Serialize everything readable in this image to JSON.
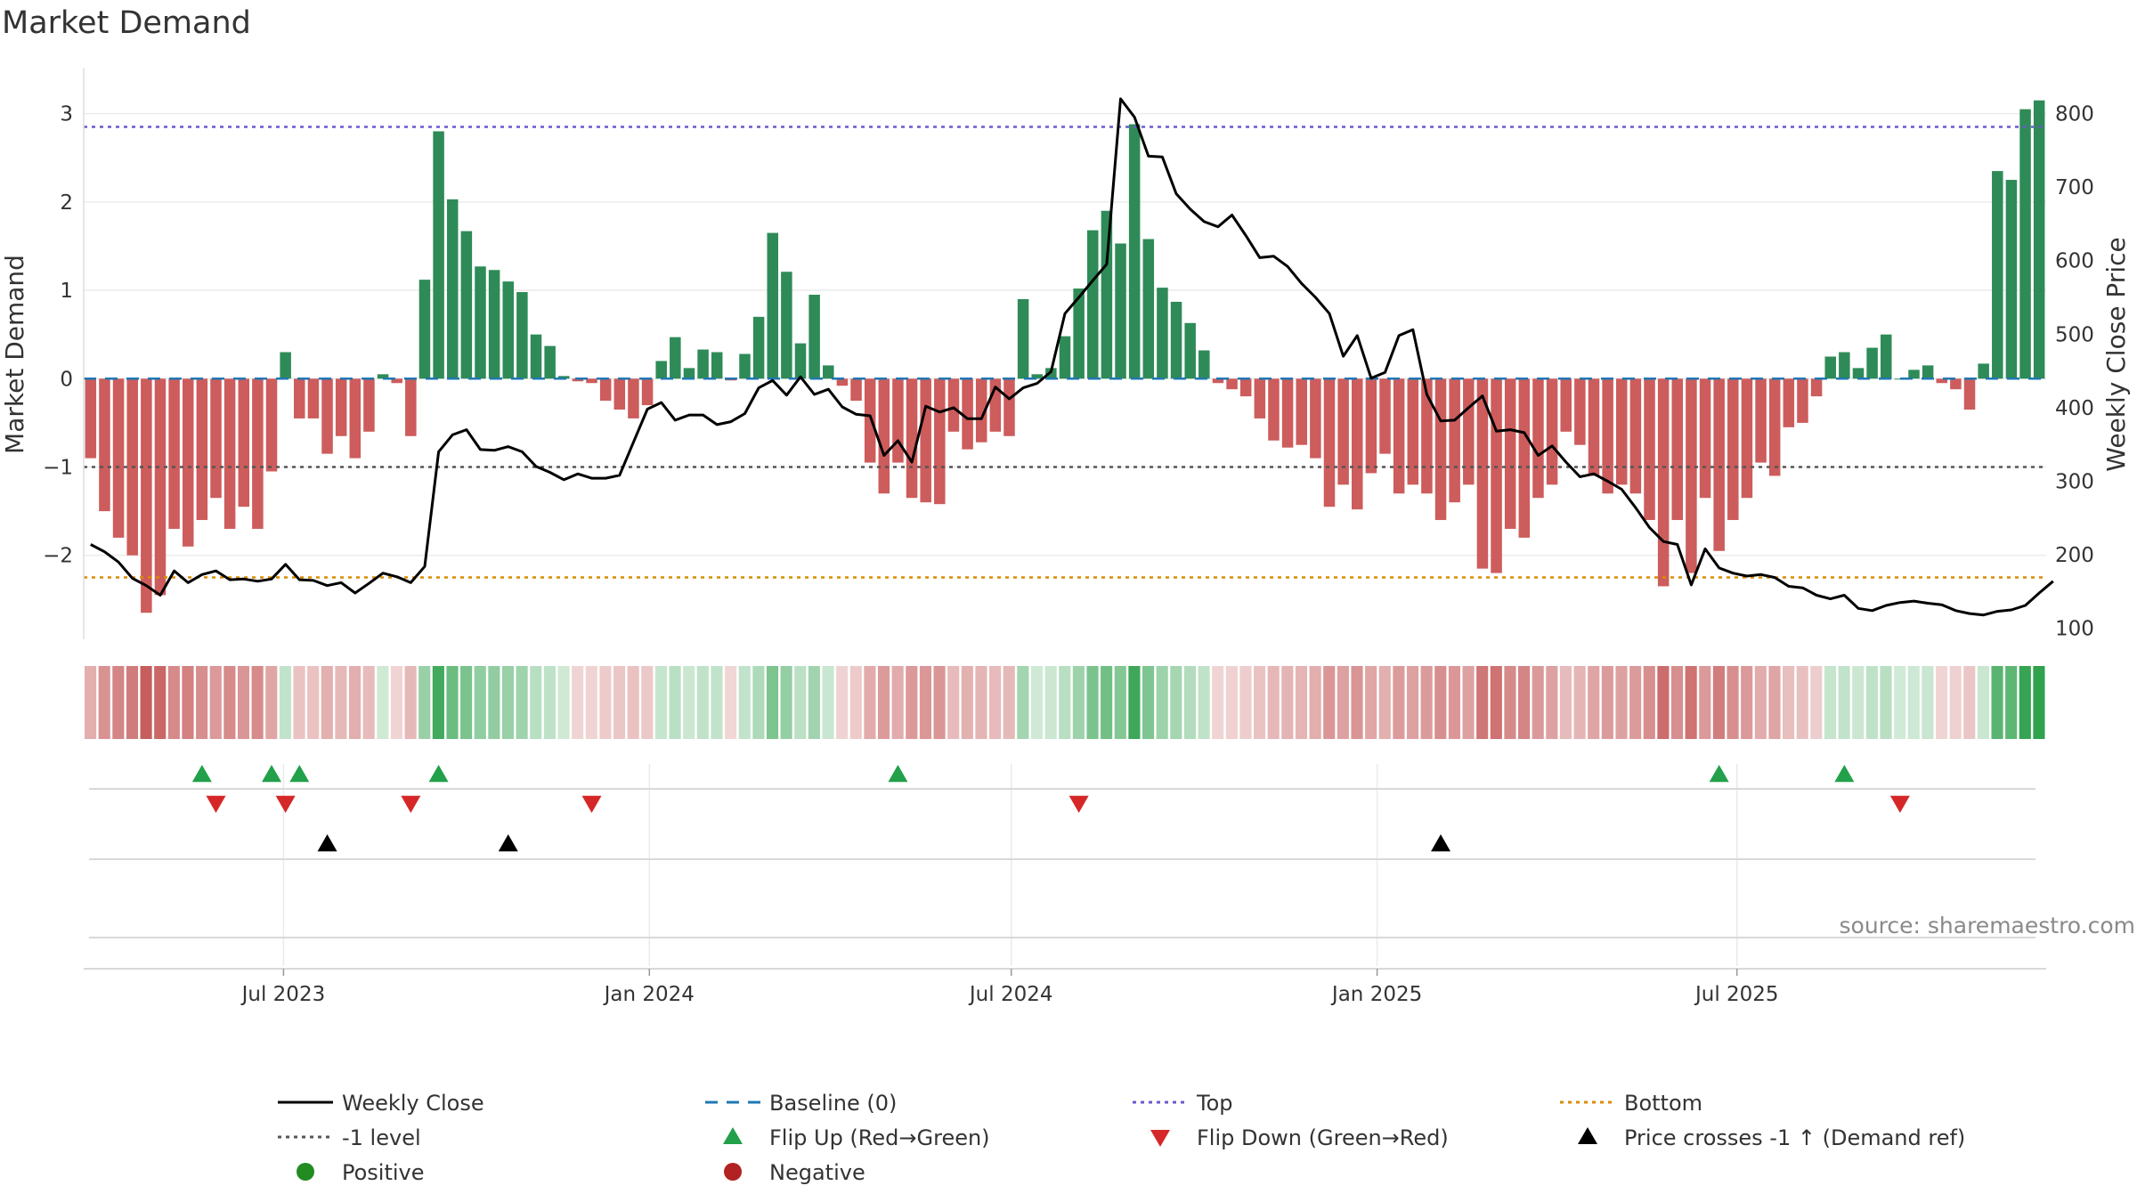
{
  "title": "Market Demand",
  "source_text": "source: sharemaestro.com",
  "chart_data": {
    "type": "bar",
    "title": "Market Demand",
    "ylabel_left": "Market Demand",
    "ylabel_right": "Weekly Close Price",
    "ylim_left": [
      -2.95,
      3.5
    ],
    "ylim_right": [
      85,
      860
    ],
    "yticks_left": [
      -2,
      -1,
      0,
      1,
      2,
      3
    ],
    "yticks_right": [
      100,
      200,
      300,
      400,
      500,
      600,
      700,
      800
    ],
    "x_start": "2023-03-26",
    "x_step_days": 7,
    "xticks": [
      {
        "label": "Jul 2023",
        "date": "2023-07-01"
      },
      {
        "label": "Jan 2024",
        "date": "2024-01-01"
      },
      {
        "label": "Jul 2024",
        "date": "2024-07-01"
      },
      {
        "label": "Jan 2025",
        "date": "2025-01-01"
      },
      {
        "label": "Jul 2025",
        "date": "2025-07-01"
      }
    ],
    "reference_lines": {
      "top": 2.85,
      "minus_one": -1.0,
      "bottom": -2.25,
      "baseline": 0
    },
    "demand": [
      -0.9,
      -1.5,
      -1.8,
      -2.0,
      -2.65,
      -2.45,
      -1.7,
      -1.9,
      -1.6,
      -1.35,
      -1.7,
      -1.45,
      -1.7,
      -1.05,
      0.3,
      -0.45,
      -0.45,
      -0.85,
      -0.65,
      -0.9,
      -0.6,
      0.05,
      -0.05,
      -0.65,
      1.12,
      2.8,
      2.03,
      1.67,
      1.27,
      1.23,
      1.1,
      0.98,
      0.5,
      0.37,
      0.03,
      -0.03,
      -0.05,
      -0.25,
      -0.35,
      -0.45,
      -0.3,
      0.2,
      0.47,
      0.12,
      0.33,
      0.3,
      -0.02,
      0.28,
      0.7,
      1.65,
      1.21,
      0.4,
      0.95,
      0.15,
      -0.08,
      -0.25,
      -0.95,
      -1.3,
      -0.95,
      -1.35,
      -1.4,
      -1.42,
      -0.6,
      -0.8,
      -0.72,
      -0.6,
      -0.65,
      0.9,
      0.05,
      0.12,
      0.48,
      1.02,
      1.68,
      1.9,
      1.53,
      2.88,
      1.58,
      1.03,
      0.87,
      0.63,
      0.32,
      -0.05,
      -0.12,
      -0.2,
      -0.45,
      -0.7,
      -0.78,
      -0.75,
      -0.9,
      -1.45,
      -1.2,
      -1.48,
      -1.07,
      -0.85,
      -1.3,
      -1.2,
      -1.3,
      -1.6,
      -1.4,
      -1.2,
      -2.15,
      -2.2,
      -1.7,
      -1.8,
      -1.35,
      -1.2,
      -0.6,
      -0.75,
      -1.1,
      -1.3,
      -1.2,
      -1.3,
      -1.6,
      -2.35,
      -1.6,
      -2.2,
      -1.35,
      -1.95,
      -1.6,
      -1.35,
      -0.95,
      -1.1,
      -0.55,
      -0.5,
      -0.2,
      0.25,
      0.3,
      0.12,
      0.35,
      0.5,
      0.0,
      0.1,
      0.15,
      -0.05,
      -0.12,
      -0.35,
      0.17,
      2.35,
      2.25,
      3.05,
      3.15
    ],
    "close": [
      214,
      204,
      190,
      168,
      158,
      145,
      178,
      162,
      173,
      178,
      166,
      167,
      164,
      167,
      187,
      166,
      165,
      158,
      162,
      148,
      161,
      175,
      170,
      162,
      184,
      340,
      363,
      370,
      343,
      342,
      347,
      340,
      320,
      312,
      302,
      310,
      304,
      304,
      308,
      353,
      398,
      407,
      383,
      390,
      390,
      377,
      381,
      392,
      427,
      437,
      417,
      442,
      418,
      425,
      401,
      391,
      389,
      335,
      355,
      326,
      402,
      394,
      400,
      385,
      385,
      428,
      412,
      427,
      433,
      449,
      528,
      550,
      573,
      595,
      820,
      795,
      742,
      741,
      691,
      670,
      653,
      646,
      662,
      634,
      604,
      606,
      592,
      569,
      550,
      528,
      470,
      498,
      440,
      448,
      498,
      506,
      418,
      382,
      383,
      400,
      416,
      368,
      370,
      366,
      335,
      348,
      326,
      306,
      310,
      300,
      289,
      264,
      237,
      218,
      214,
      159,
      208,
      182,
      175,
      171,
      173,
      169,
      157,
      155,
      145,
      140,
      145,
      127,
      124,
      131,
      135,
      137,
      134,
      132,
      124,
      120,
      118,
      123,
      125,
      131,
      148,
      164
    ],
    "shade_levels": [
      -0.9,
      -1.5,
      -1.8,
      -2.0,
      -2.65,
      -2.45,
      -1.7,
      -1.9,
      -1.6,
      -1.35,
      -1.7,
      -1.45,
      -1.7,
      -1.05,
      0.3,
      -0.45,
      -0.45,
      -0.85,
      -0.65,
      -0.9,
      -0.6,
      0.05,
      -0.05,
      -0.65,
      1.12,
      2.8,
      2.03,
      1.67,
      1.27,
      1.23,
      1.1,
      0.98,
      0.5,
      0.37,
      0.03,
      -0.03,
      -0.05,
      -0.25,
      -0.35,
      -0.45,
      -0.3,
      0.2,
      0.47,
      0.12,
      0.33,
      0.3,
      -0.02,
      0.28,
      0.7,
      1.65,
      1.21,
      0.4,
      0.95,
      0.15,
      -0.08,
      -0.25,
      -0.95,
      -1.3,
      -0.95,
      -1.35,
      -1.4,
      -1.42,
      -0.6,
      -0.8,
      -0.72,
      -0.6,
      -0.65,
      0.9,
      0.05,
      0.12,
      0.48,
      1.02,
      1.68,
      1.9,
      1.53,
      2.88,
      1.58,
      1.03,
      0.87,
      0.63,
      0.32,
      -0.05,
      -0.12,
      -0.2,
      -0.45,
      -0.7,
      -0.78,
      -0.75,
      -0.9,
      -1.45,
      -1.2,
      -1.48,
      -1.07,
      -0.85,
      -1.3,
      -1.2,
      -1.3,
      -1.6,
      -1.4,
      -1.2,
      -2.15,
      -2.2,
      -1.7,
      -1.8,
      -1.35,
      -1.2,
      -0.6,
      -0.75,
      -1.1,
      -1.3,
      -1.2,
      -1.3,
      -1.6,
      -2.35,
      -1.6,
      -2.2,
      -1.35,
      -1.95,
      -1.6,
      -1.35,
      -0.95,
      -1.1,
      -0.55,
      -0.5,
      -0.2,
      0.25,
      0.3,
      0.12,
      0.35,
      0.5,
      0.0,
      0.1,
      0.15,
      -0.05,
      -0.12,
      -0.35,
      0.17,
      2.35,
      2.25,
      3.05,
      3.15
    ],
    "flip_up_dates": [
      "2023-05-21",
      "2023-06-25",
      "2023-07-09",
      "2023-09-17",
      "2024-05-05",
      "2025-06-22",
      "2025-08-24"
    ],
    "flip_down_dates": [
      "2023-05-28",
      "2023-07-02",
      "2023-09-03",
      "2023-12-03",
      "2024-08-04",
      "2025-09-21"
    ],
    "price_cross_dates": [
      "2023-07-23",
      "2023-10-22",
      "2025-02-02"
    ],
    "colors": {
      "positive_bar": "#2e8b57",
      "negative_bar": "#cd5c5c",
      "close_line": "#000000",
      "baseline": "#1f77b4",
      "top_line": "#6a5acd",
      "minus_one_line": "#555555",
      "bottom_line": "#d98c00",
      "flip_up": "#22a04a",
      "flip_down": "#d62728",
      "price_cross": "#000000",
      "positive_dot": "#228b22",
      "negative_dot": "#b22222"
    },
    "legend": [
      {
        "key": "close",
        "label": "Weekly Close"
      },
      {
        "key": "baseline",
        "label": "Baseline (0)"
      },
      {
        "key": "top",
        "label": "Top"
      },
      {
        "key": "bottom",
        "label": "Bottom"
      },
      {
        "key": "minus_one",
        "label": "-1 level"
      },
      {
        "key": "flip_up",
        "label": "Flip Up (Red→Green)"
      },
      {
        "key": "flip_down",
        "label": "Flip Down (Green→Red)"
      },
      {
        "key": "price_cross",
        "label": "Price crosses -1 ↑ (Demand ref)"
      },
      {
        "key": "positive",
        "label": "Positive"
      },
      {
        "key": "negative",
        "label": "Negative"
      }
    ]
  }
}
